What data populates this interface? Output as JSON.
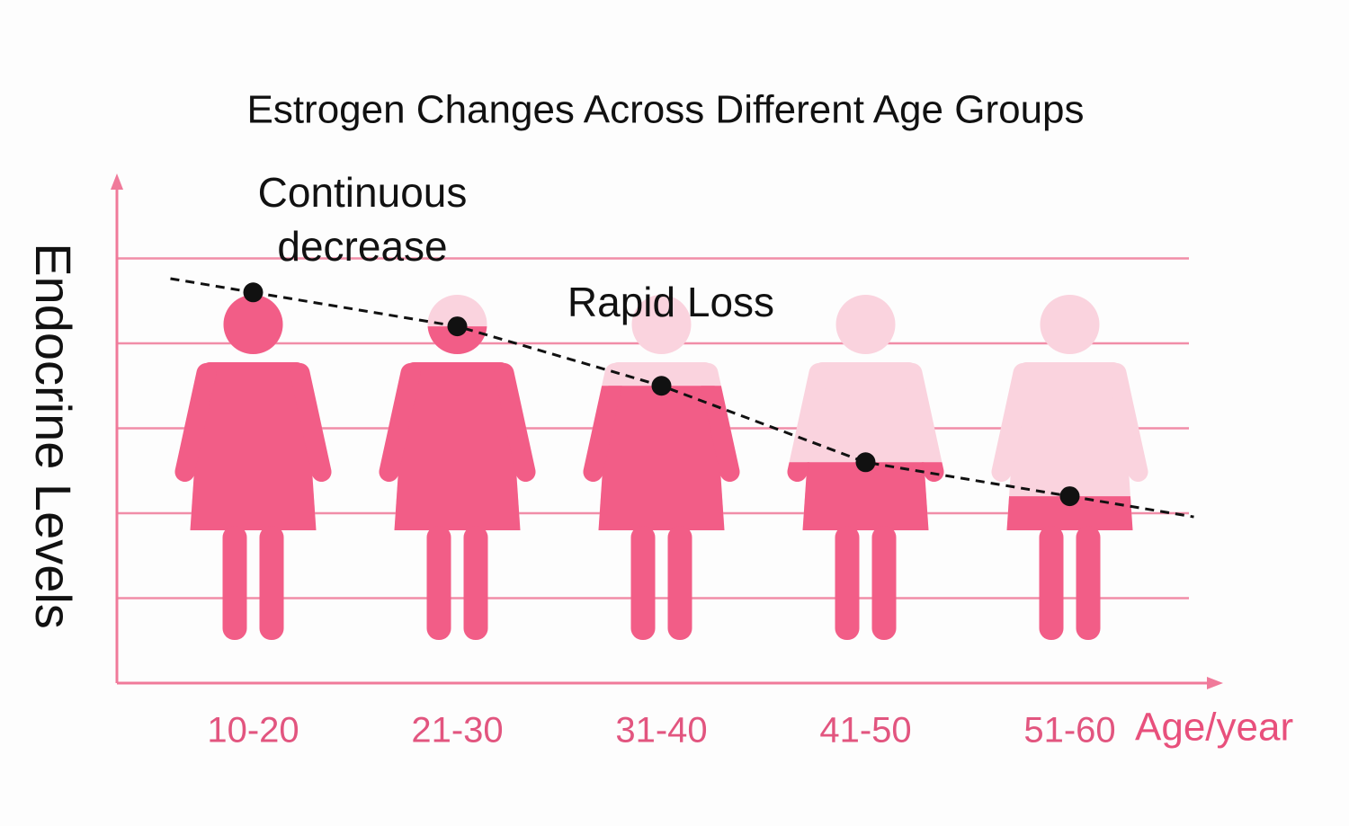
{
  "chart_data": {
    "type": "line",
    "title": "Estrogen Changes Across Different Age Groups",
    "y_label": "Endocrine Levels",
    "x_label": "Age/year",
    "categories": [
      "10-20",
      "21-30",
      "31-40",
      "41-50",
      "51-60"
    ],
    "values": [
      4.6,
      4.2,
      3.5,
      2.6,
      2.2
    ],
    "ylim": [
      0,
      6
    ],
    "yticks": [
      1,
      2,
      3,
      4,
      5
    ],
    "grid": true,
    "color": "#111111",
    "figure_color": "#f25d87",
    "figure_empty_color": "#fad3de",
    "axis_color": "#f07a9a",
    "annotations": [
      {
        "lines": [
          "Continuous",
          "decrease"
        ]
      },
      {
        "lines": [
          "Rapid Loss"
        ]
      }
    ]
  }
}
